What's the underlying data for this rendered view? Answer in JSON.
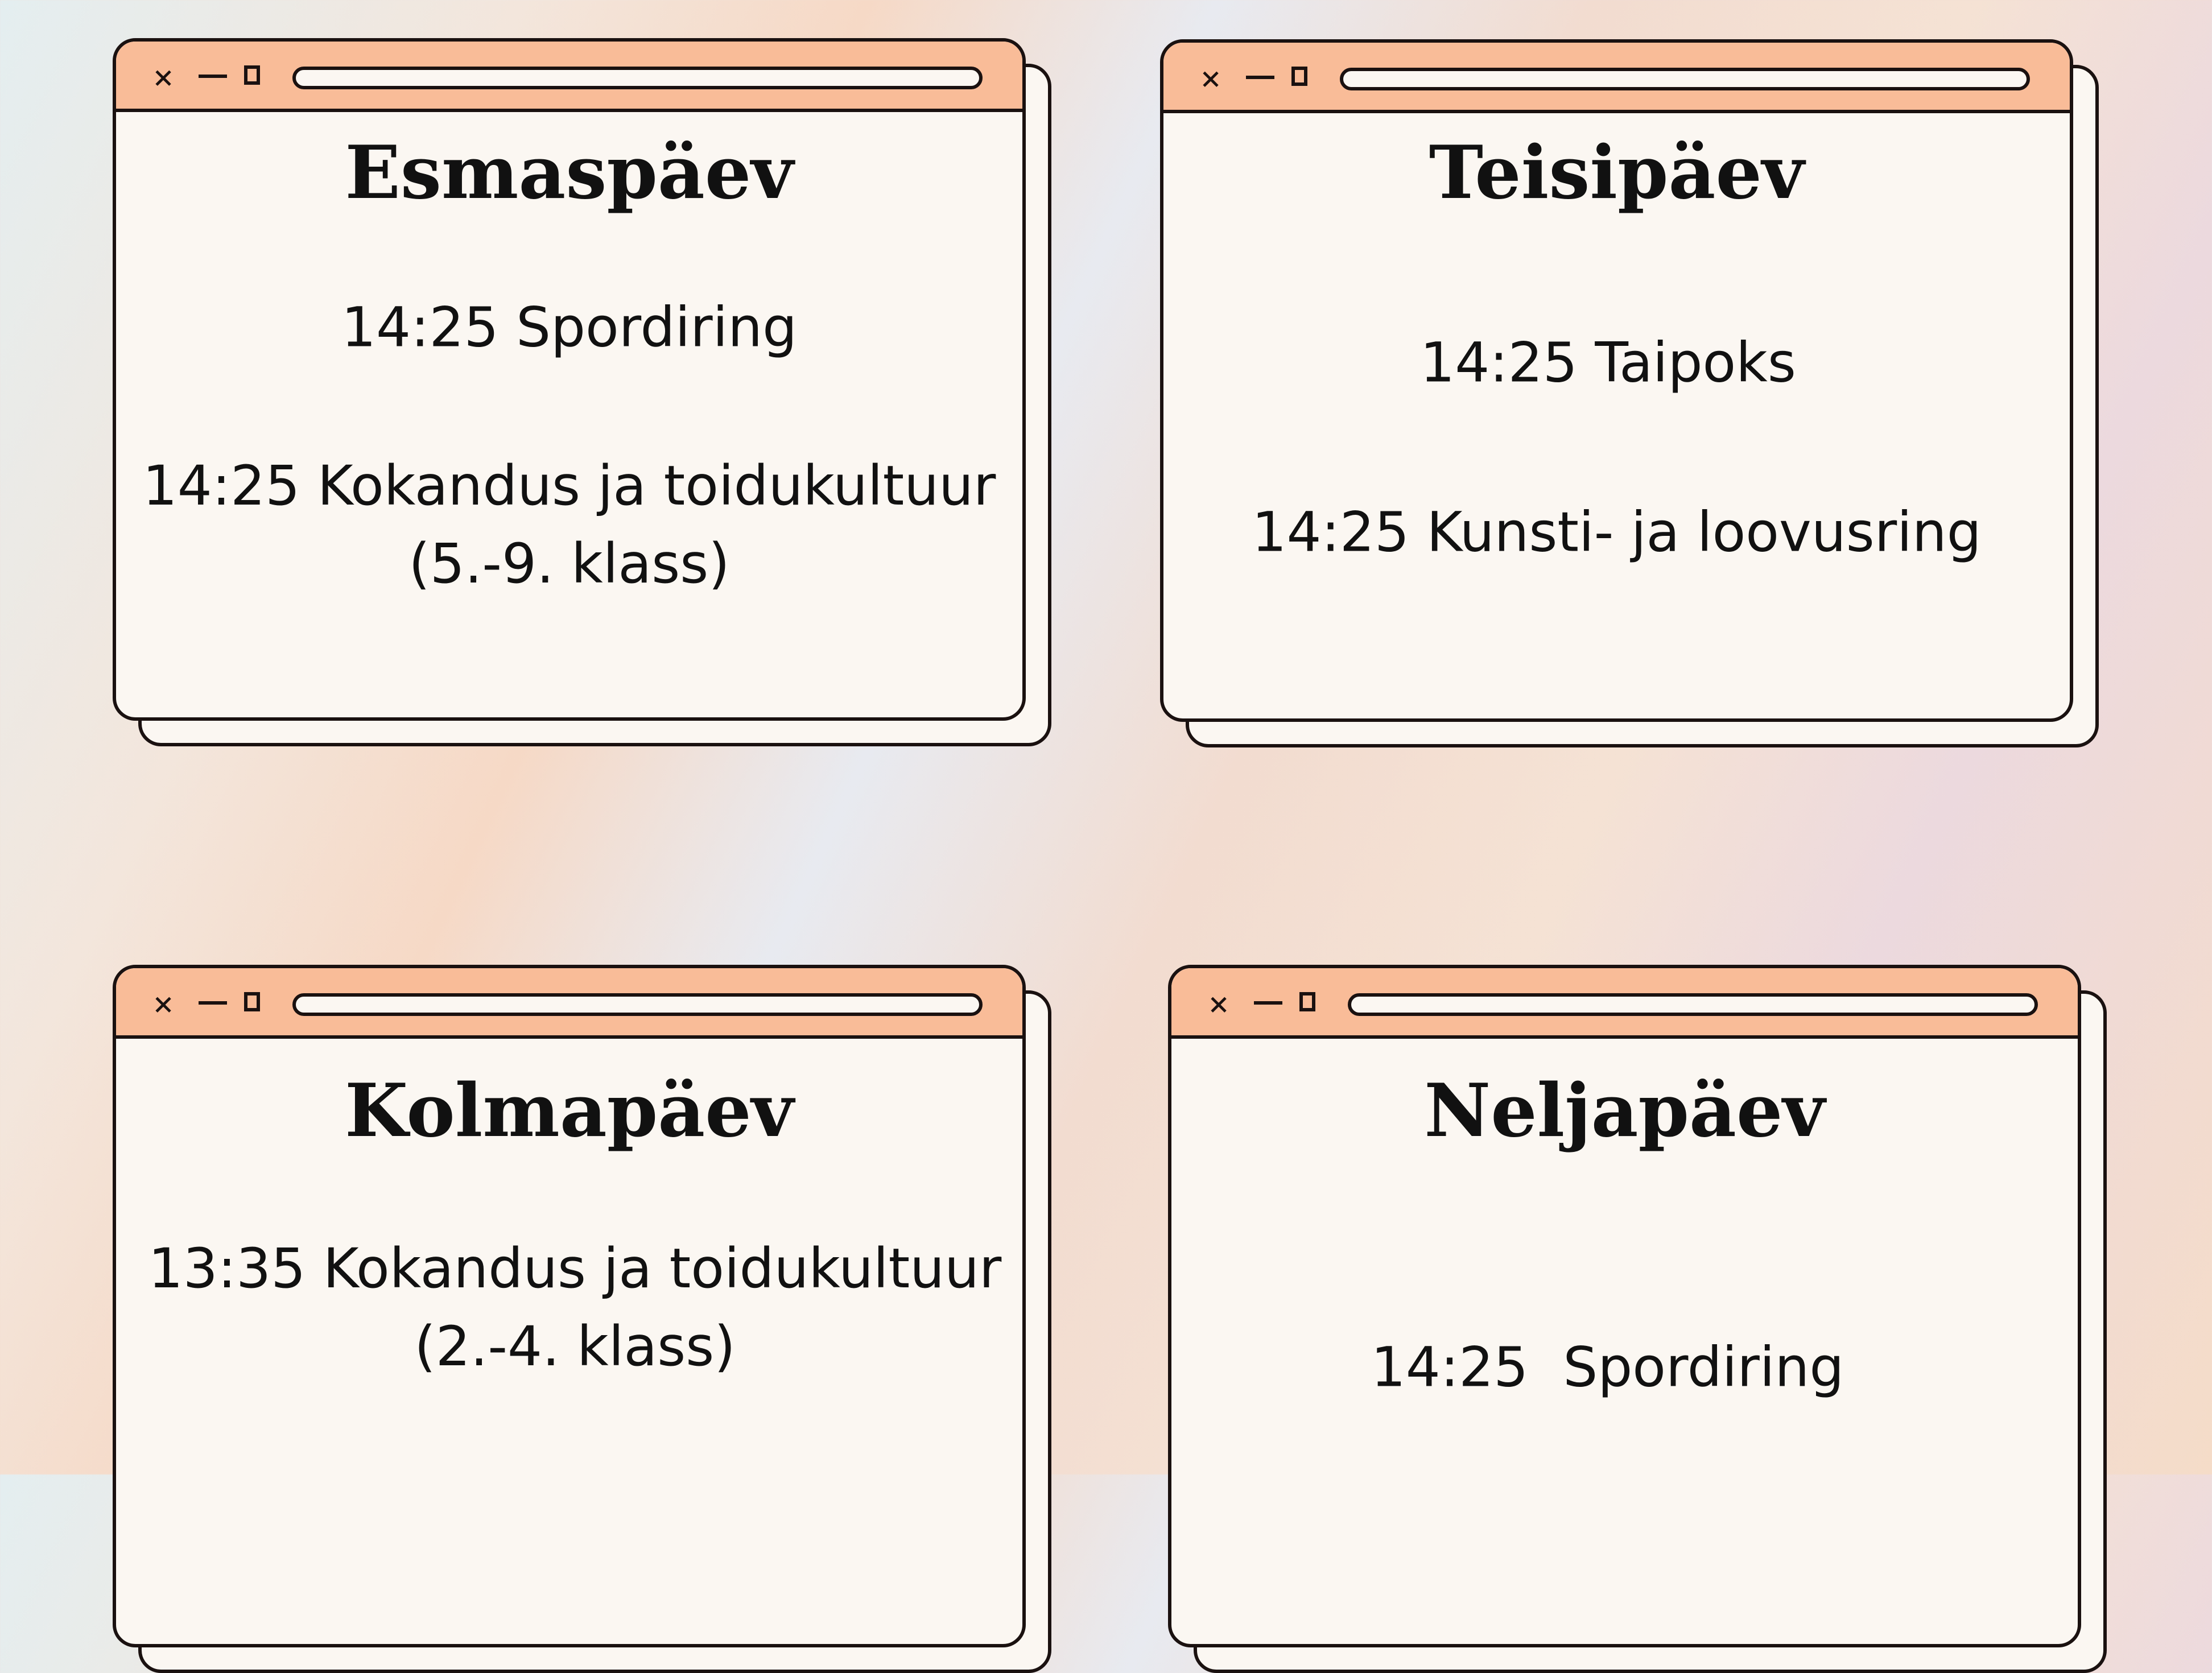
{
  "colors": {
    "header": "#f9bc98",
    "window": "#fbf7f2",
    "border": "#1a1110"
  },
  "window_controls": {
    "close_icon": "×",
    "minimize_icon": "_",
    "maximize_icon": "□"
  },
  "days": [
    {
      "title": "Esmaspäev",
      "items": [
        "14:25 Spordiring",
        "14:25 Kokandus ja toidukultuur\n(5.-9. klass)"
      ]
    },
    {
      "title": "Teisipäev",
      "items": [
        "14:25 Taipoks",
        "14:25 Kunsti- ja loovusring"
      ]
    },
    {
      "title": "Kolmapäev",
      "items": [
        "13:35 Kokandus ja toidukultuur\n(2.-4. klass)"
      ]
    },
    {
      "title": "Neljapäev",
      "items": [
        "14:25  Spordiring"
      ]
    }
  ]
}
